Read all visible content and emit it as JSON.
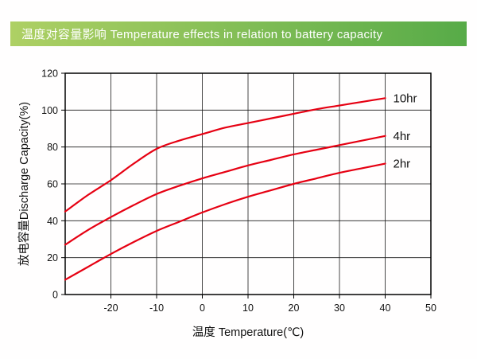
{
  "header": {
    "title": "温度对容量影响 Temperature effects in relation to battery capacity"
  },
  "chart_data": {
    "type": "line",
    "title": "温度对容量影响 Temperature effects in relation to battery capacity",
    "xlabel": "温度 Temperature(℃)",
    "ylabel": "放电容量Discharge Capacity(%)",
    "xlim": [
      -30,
      50
    ],
    "ylim": [
      0,
      120
    ],
    "xticks": [
      -20,
      -10,
      0,
      10,
      20,
      30,
      40,
      50
    ],
    "yticks": [
      0,
      20,
      40,
      60,
      80,
      100,
      120
    ],
    "grid": true,
    "legend_position": "right-of-line-ends",
    "line_color": "#e60012",
    "series": [
      {
        "name": "10hr",
        "points": [
          [
            -30,
            45
          ],
          [
            -25,
            54
          ],
          [
            -20,
            62
          ],
          [
            -15,
            71
          ],
          [
            -10,
            79
          ],
          [
            -5,
            83.5
          ],
          [
            0,
            87
          ],
          [
            5,
            90.5
          ],
          [
            10,
            93
          ],
          [
            15,
            95.5
          ],
          [
            20,
            98
          ],
          [
            25,
            100.5
          ],
          [
            30,
            102.5
          ],
          [
            35,
            104.5
          ],
          [
            40,
            106.5
          ]
        ]
      },
      {
        "name": "4hr",
        "points": [
          [
            -30,
            27
          ],
          [
            -25,
            35
          ],
          [
            -20,
            42
          ],
          [
            -15,
            48.5
          ],
          [
            -10,
            54.5
          ],
          [
            -5,
            59
          ],
          [
            0,
            63
          ],
          [
            5,
            66.5
          ],
          [
            10,
            70
          ],
          [
            15,
            73
          ],
          [
            20,
            76
          ],
          [
            25,
            78.5
          ],
          [
            30,
            81
          ],
          [
            35,
            83.5
          ],
          [
            40,
            86
          ]
        ]
      },
      {
        "name": "2hr",
        "points": [
          [
            -30,
            8
          ],
          [
            -25,
            15
          ],
          [
            -20,
            22
          ],
          [
            -15,
            28.5
          ],
          [
            -10,
            34.5
          ],
          [
            -5,
            39.5
          ],
          [
            0,
            44.5
          ],
          [
            5,
            49
          ],
          [
            10,
            53
          ],
          [
            15,
            56.5
          ],
          [
            20,
            60
          ],
          [
            25,
            63
          ],
          [
            30,
            66
          ],
          [
            35,
            68.5
          ],
          [
            40,
            71
          ]
        ]
      }
    ]
  }
}
